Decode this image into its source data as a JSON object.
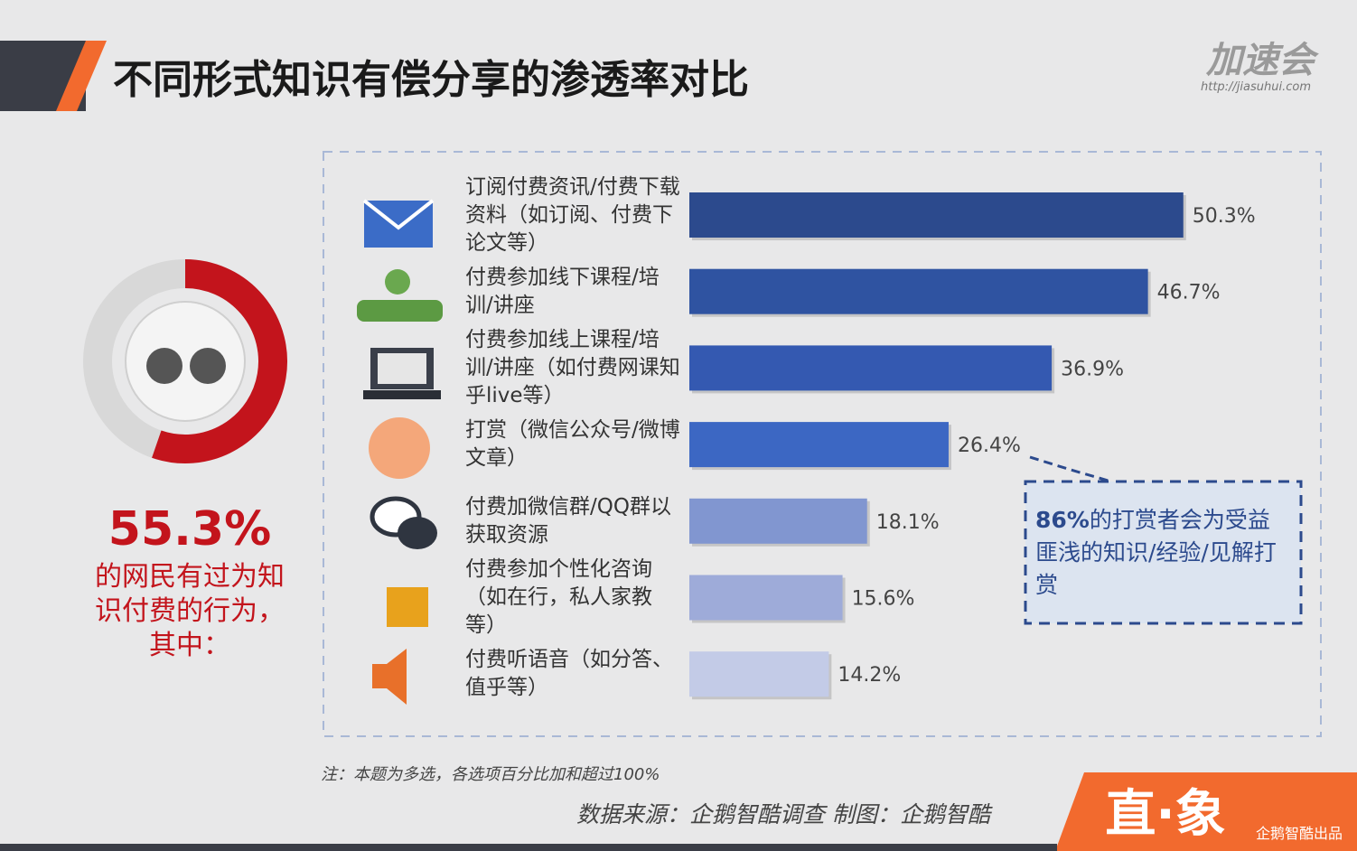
{
  "chart_data": {
    "type": "hbar",
    "title": "不同形式知识有偿分享的渗透率对比",
    "categories": [
      "订阅付费资讯/付费下载资料（如订阅、付费下论文等）",
      "付费参加线下课程/培训/讲座",
      "付费参加线上课程/培训/讲座（如付费网课知乎live等）",
      "打赏（微信公众号/微博文章）",
      "付费加微信群/QQ群以获取资源",
      "付费参加个性化咨询（如在行，私人家教等）",
      "付费听语音（如分答、值乎等）"
    ],
    "values": [
      50.3,
      46.7,
      36.9,
      26.4,
      18.1,
      15.6,
      14.2
    ],
    "value_labels": [
      "50.3%",
      "46.7%",
      "36.9%",
      "26.4%",
      "18.1%",
      "15.6%",
      "14.2%"
    ],
    "colors": [
      "#2c4a8d",
      "#2f53a1",
      "#3459b1",
      "#3c67c3",
      "#8196d0",
      "#9eabd9",
      "#c3cbe7"
    ],
    "annotation": {
      "highlight": "86%",
      "text": "的打赏者会为受益匪浅的知识/经验/见解打赏"
    }
  },
  "summary": {
    "value": 55.3,
    "value_label": "55.3%",
    "text": "的网民有过为知识付费的行为，其中：",
    "color": "#c3141c"
  },
  "note": "注：本题为多选，各选项百分比加和超过100%",
  "source": "数据来源：企鹅智酷调查 制图：企鹅智酷",
  "brand": {
    "logo": "加速会",
    "url": "http://jiasuhui.com",
    "stamp": "直·象",
    "stamp_sub": "企鹅智酷出品"
  }
}
